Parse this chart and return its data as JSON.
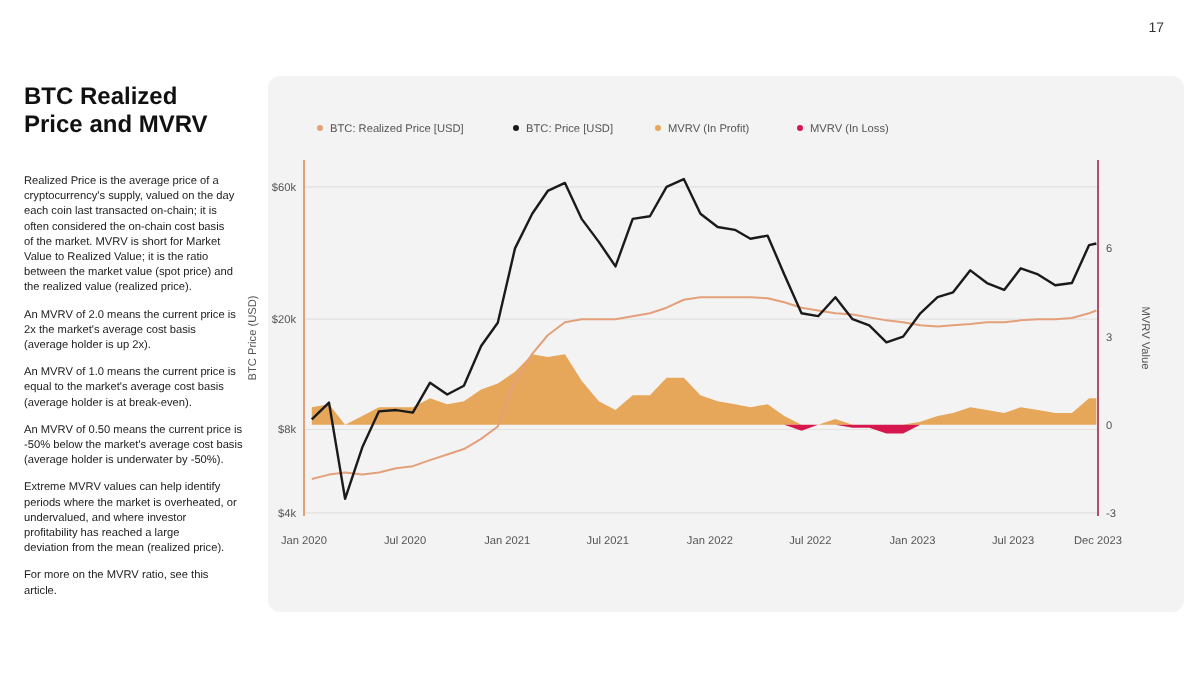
{
  "chart_data": {
    "type": "line",
    "title": "BTC Realized Price and MVRV",
    "annotations": [
      "17",
      "Realized Price is the average price of a cryptocurrency's supply, valued on the day each coin last transacted on-chain; it is often considered the on-chain cost basis of the market. MVRV is short for Market Value to Realized Value; it is the ratio between the market value (spot price) and the realized value (realized price).",
      "An MVRV of 2.0 means the current price is 2x the market's average cost basis (average holder is up 2x).",
      "An MVRV of 1.0 means the current price is equal to the market's average cost basis (average holder is at break-even).",
      "An MVRV of 0.50 means the current price is -50% below the market's average cost basis (average holder is underwater by -50%).",
      "Extreme MVRV values can help identify periods where the market is overheated, or undervalued, and where investor profitability has reached a large deviation from the mean (realized price).",
      "For more on the MVRV ratio, see this article."
    ],
    "ylabel": "BTC Price (USD)",
    "y2label": "MVRV Value",
    "x": [
      "2020-01-15",
      "2020-02-15",
      "2020-03-15",
      "2020-04-15",
      "2020-05-15",
      "2020-06-15",
      "2020-07-15",
      "2020-08-15",
      "2020-09-15",
      "2020-10-15",
      "2020-11-15",
      "2020-12-15",
      "2021-01-15",
      "2021-02-15",
      "2021-03-15",
      "2021-04-15",
      "2021-05-15",
      "2021-06-15",
      "2021-07-15",
      "2021-08-15",
      "2021-09-15",
      "2021-10-15",
      "2021-11-15",
      "2021-12-15",
      "2022-01-15",
      "2022-02-15",
      "2022-03-15",
      "2022-04-15",
      "2022-05-15",
      "2022-06-15",
      "2022-07-15",
      "2022-08-15",
      "2022-09-15",
      "2022-10-15",
      "2022-11-15",
      "2022-12-15",
      "2023-01-15",
      "2023-02-15",
      "2023-03-15",
      "2023-04-15",
      "2023-05-15",
      "2023-06-15",
      "2023-07-15",
      "2023-08-15",
      "2023-09-15",
      "2023-10-15",
      "2023-11-15",
      "2023-11-28"
    ],
    "xlim": [
      "2020-01-01",
      "2023-12-01"
    ],
    "xticks": [
      {
        "value": "2020-01-01",
        "label": "Jan 2020"
      },
      {
        "value": "2020-07-01",
        "label": "Jul 2020"
      },
      {
        "value": "2021-01-01",
        "label": "Jan 2021"
      },
      {
        "value": "2021-07-01",
        "label": "Jul 2021"
      },
      {
        "value": "2022-01-01",
        "label": "Jan 2022"
      },
      {
        "value": "2022-07-01",
        "label": "Jul 2022"
      },
      {
        "value": "2023-01-01",
        "label": "Jan 2023"
      },
      {
        "value": "2023-07-01",
        "label": "Jul 2023"
      },
      {
        "value": "2023-12-01",
        "label": "Dec 2023"
      }
    ],
    "log": "y",
    "ylim": [
      3900,
      75000
    ],
    "yticks": [
      {
        "value": 4000,
        "label": "$4k"
      },
      {
        "value": 8000,
        "label": "$8k"
      },
      {
        "value": 20000,
        "label": "$20k"
      },
      {
        "value": 60000,
        "label": "$60k"
      }
    ],
    "y2lim": [
      -3.1,
      9
    ],
    "y2ticks": [
      -3,
      0,
      3,
      6
    ],
    "grid": "y",
    "legend": "top",
    "series": [
      {
        "name": "BTC: Realized Price [USD]",
        "color": "#e3a07a",
        "values": [
          5300,
          5500,
          5600,
          5500,
          5600,
          5800,
          5900,
          6200,
          6500,
          6800,
          7400,
          8200,
          12000,
          15000,
          17500,
          19500,
          20000,
          20000,
          20000,
          20500,
          21000,
          22000,
          23500,
          24000,
          24000,
          24000,
          24000,
          23800,
          23000,
          22000,
          21500,
          21000,
          20800,
          20300,
          19800,
          19500,
          19000,
          18800,
          19000,
          19200,
          19500,
          19500,
          19800,
          20000,
          20000,
          20200,
          21000,
          21500
        ]
      },
      {
        "name": "BTC: Price [USD]",
        "color": "#1a1a1a",
        "values": [
          8700,
          10000,
          4500,
          6900,
          9300,
          9400,
          9200,
          11800,
          10700,
          11500,
          16000,
          19400,
          36000,
          48000,
          58000,
          62000,
          46000,
          38000,
          31000,
          46000,
          47000,
          60000,
          64000,
          48000,
          43000,
          42000,
          39000,
          40000,
          29000,
          21000,
          20500,
          24000,
          20000,
          19000,
          16500,
          17300,
          21000,
          24000,
          25000,
          30000,
          27000,
          25500,
          30500,
          29000,
          26500,
          27000,
          37000,
          37500
        ]
      },
      {
        "name": "MVRV (In Profit)",
        "type": "area",
        "axis": "y2",
        "color": "#e6a75a",
        "values": [
          0.6,
          0.7,
          0,
          0.3,
          0.6,
          0.6,
          0.6,
          0.9,
          0.7,
          0.8,
          1.2,
          1.4,
          1.8,
          2.4,
          2.3,
          2.4,
          1.5,
          0.8,
          0.5,
          1.0,
          1.0,
          1.6,
          1.6,
          1.0,
          0.8,
          0.7,
          0.6,
          0.7,
          0.3,
          0,
          0,
          0.2,
          0,
          0,
          0,
          0,
          0.1,
          0.3,
          0.4,
          0.6,
          0.5,
          0.4,
          0.6,
          0.5,
          0.4,
          0.4,
          0.9,
          0.9
        ]
      },
      {
        "name": "MVRV (In Loss)",
        "type": "area",
        "axis": "y2",
        "color": "#d6174e",
        "values": [
          0,
          0,
          0,
          0,
          0,
          0,
          0,
          0,
          0,
          0,
          0,
          0,
          0,
          0,
          0,
          0,
          0,
          0,
          0,
          0,
          0,
          0,
          0,
          0,
          0,
          0,
          0,
          0,
          0,
          -0.2,
          0,
          0,
          -0.1,
          -0.1,
          -0.3,
          -0.3,
          0,
          0,
          0,
          0,
          0,
          0,
          0,
          0,
          0,
          0,
          0,
          0
        ]
      }
    ]
  }
}
